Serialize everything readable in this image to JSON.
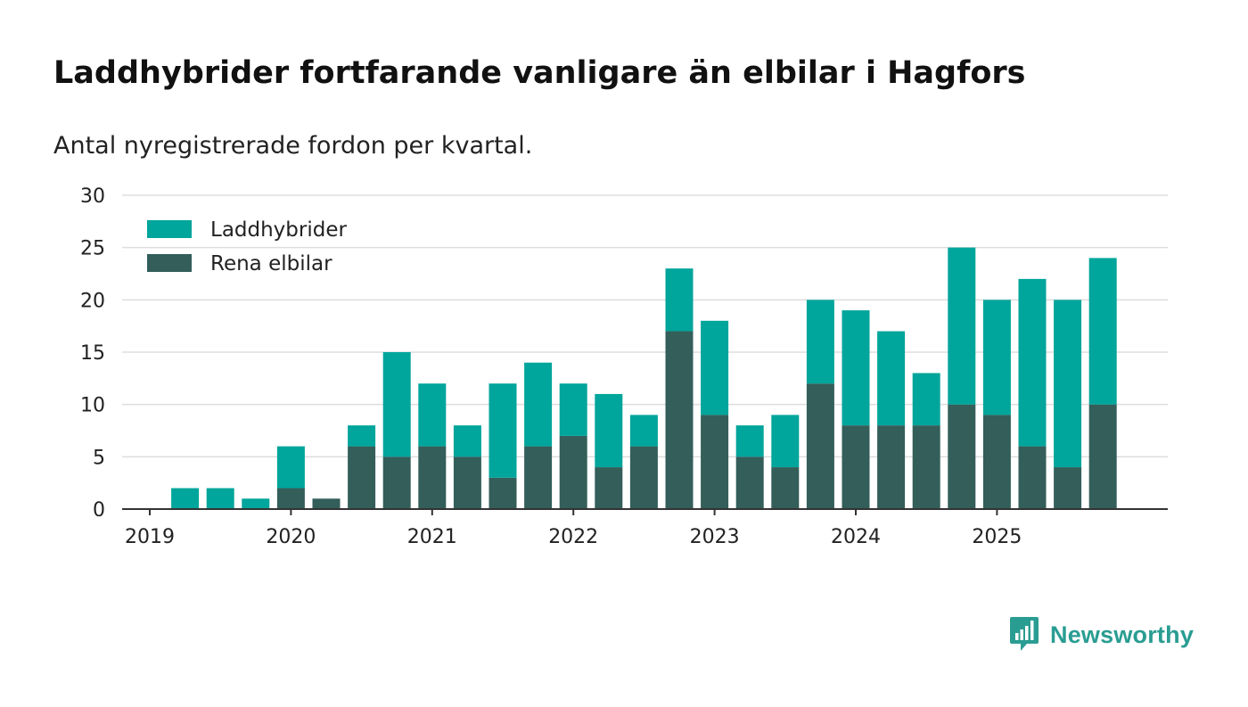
{
  "title": "Laddhybrider fortfarande vanligare än elbilar i Hagfors",
  "subtitle": "Antal nyregistrerade fordon per kvartal.",
  "brand": {
    "name": "Newsworthy",
    "icon": "newsworthy-logo-icon",
    "color": "#2a9d92"
  },
  "chart_data": {
    "type": "bar",
    "stacked": true,
    "categories": [
      "2019 Q1",
      "2019 Q2",
      "2019 Q3",
      "2019 Q4",
      "2020 Q1",
      "2020 Q2",
      "2020 Q3",
      "2020 Q4",
      "2021 Q1",
      "2021 Q2",
      "2021 Q3",
      "2021 Q4",
      "2022 Q1",
      "2022 Q2",
      "2022 Q3",
      "2022 Q4",
      "2023 Q1",
      "2023 Q2",
      "2023 Q3",
      "2023 Q4",
      "2024 Q1",
      "2024 Q2",
      "2024 Q3",
      "2024 Q4",
      "2025 Q1",
      "2025 Q2",
      "2025 Q3",
      "2025 Q4"
    ],
    "series": [
      {
        "name": "Rena elbilar",
        "color": "#335e5a",
        "values": [
          0,
          0,
          0,
          0,
          2,
          1,
          6,
          5,
          6,
          5,
          3,
          6,
          7,
          4,
          6,
          17,
          9,
          5,
          4,
          12,
          8,
          8,
          8,
          10,
          9,
          6,
          4,
          10
        ]
      },
      {
        "name": "Laddhybrider",
        "color": "#00a59b",
        "values": [
          0,
          2,
          2,
          1,
          4,
          0,
          2,
          10,
          6,
          3,
          9,
          8,
          5,
          7,
          3,
          6,
          9,
          3,
          5,
          8,
          11,
          9,
          5,
          15,
          11,
          16,
          16,
          14
        ]
      }
    ],
    "x_ticks": [
      "2019",
      "2020",
      "2021",
      "2022",
      "2023",
      "2024",
      "2025"
    ],
    "y_ticks": [
      0,
      5,
      10,
      15,
      20,
      25,
      30
    ],
    "ylim": [
      0,
      30
    ],
    "grid": true,
    "legend_position": "top-left",
    "legend": [
      "Laddhybrider",
      "Rena elbilar"
    ]
  }
}
